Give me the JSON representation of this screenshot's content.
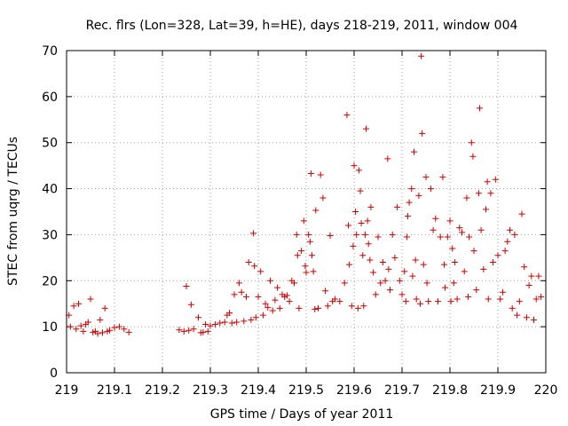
{
  "chart_data": {
    "type": "scatter",
    "title": "Rec. flrs (Lon=328, Lat=39, h=HE), days 218-219, 2011, window 004",
    "xlabel": "GPS time / Days of year 2011",
    "ylabel": "STEC from uqrg / TECUs",
    "xlim": [
      219,
      220
    ],
    "ylim": [
      0,
      70
    ],
    "xticks": [
      "219",
      "219.1",
      "219.2",
      "219.3",
      "219.4",
      "219.5",
      "219.6",
      "219.7",
      "219.8",
      "219.9",
      "220"
    ],
    "xtick_values": [
      219,
      219.1,
      219.2,
      219.3,
      219.4,
      219.5,
      219.6,
      219.7,
      219.8,
      219.9,
      220
    ],
    "yticks": [
      "0",
      "10",
      "20",
      "30",
      "40",
      "50",
      "60",
      "70"
    ],
    "ytick_values": [
      0,
      10,
      20,
      30,
      40,
      50,
      60,
      70
    ],
    "grid": true,
    "marker": "plus",
    "marker_color": "#cc0000",
    "series": [
      {
        "points": [
          [
            219.005,
            12.5
          ],
          [
            219.008,
            10.0
          ],
          [
            219.015,
            14.5
          ],
          [
            219.02,
            9.5
          ],
          [
            219.025,
            15.0
          ],
          [
            219.03,
            10.2
          ],
          [
            219.035,
            9.0
          ],
          [
            219.04,
            10.5
          ],
          [
            219.045,
            11.0
          ],
          [
            219.05,
            16.0
          ],
          [
            219.055,
            8.8
          ],
          [
            219.06,
            9.0
          ],
          [
            219.065,
            8.5
          ],
          [
            219.07,
            11.5
          ],
          [
            219.075,
            8.7
          ],
          [
            219.08,
            14.0
          ],
          [
            219.085,
            9.0
          ],
          [
            219.09,
            9.2
          ],
          [
            219.1,
            9.8
          ],
          [
            219.11,
            10.0
          ],
          [
            219.12,
            9.5
          ],
          [
            219.13,
            8.8
          ],
          [
            219.235,
            9.3
          ],
          [
            219.245,
            9.0
          ],
          [
            219.25,
            18.8
          ],
          [
            219.255,
            9.2
          ],
          [
            219.26,
            14.8
          ],
          [
            219.265,
            9.5
          ],
          [
            219.275,
            12.0
          ],
          [
            219.28,
            8.7
          ],
          [
            219.285,
            8.8
          ],
          [
            219.29,
            10.5
          ],
          [
            219.295,
            9.0
          ],
          [
            219.3,
            10.2
          ],
          [
            219.31,
            10.5
          ],
          [
            219.32,
            10.8
          ],
          [
            219.33,
            11.0
          ],
          [
            219.335,
            12.5
          ],
          [
            219.34,
            13.0
          ],
          [
            219.345,
            10.8
          ],
          [
            219.35,
            17.0
          ],
          [
            219.355,
            11.0
          ],
          [
            219.36,
            19.5
          ],
          [
            219.365,
            17.5
          ],
          [
            219.37,
            11.2
          ],
          [
            219.375,
            16.5
          ],
          [
            219.38,
            24.0
          ],
          [
            219.385,
            11.5
          ],
          [
            219.39,
            30.3
          ],
          [
            219.392,
            23.2
          ],
          [
            219.395,
            12.0
          ],
          [
            219.4,
            16.5
          ],
          [
            219.405,
            22.0
          ],
          [
            219.41,
            12.5
          ],
          [
            219.415,
            15.0
          ],
          [
            219.42,
            14.2
          ],
          [
            219.425,
            20.0
          ],
          [
            219.43,
            13.5
          ],
          [
            219.435,
            15.8
          ],
          [
            219.44,
            18.5
          ],
          [
            219.445,
            14.0
          ],
          [
            219.45,
            17.0
          ],
          [
            219.455,
            16.5
          ],
          [
            219.46,
            16.8
          ],
          [
            219.465,
            15.5
          ],
          [
            219.47,
            20.0
          ],
          [
            219.475,
            19.5
          ],
          [
            219.48,
            30.0
          ],
          [
            219.482,
            25.5
          ],
          [
            219.485,
            14.0
          ],
          [
            219.49,
            26.5
          ],
          [
            219.495,
            33.0
          ],
          [
            219.498,
            23.2
          ],
          [
            219.5,
            21.8
          ],
          [
            219.505,
            30.0
          ],
          [
            219.508,
            28.5
          ],
          [
            219.51,
            43.3
          ],
          [
            219.512,
            25.5
          ],
          [
            219.515,
            22.0
          ],
          [
            219.518,
            13.8
          ],
          [
            219.52,
            35.3
          ],
          [
            219.525,
            14.0
          ],
          [
            219.53,
            43.0
          ],
          [
            219.535,
            38.0
          ],
          [
            219.54,
            17.8
          ],
          [
            219.545,
            14.5
          ],
          [
            219.55,
            29.8
          ],
          [
            219.555,
            15.5
          ],
          [
            219.56,
            16.0
          ],
          [
            219.57,
            15.5
          ],
          [
            219.58,
            19.5
          ],
          [
            219.585,
            56.0
          ],
          [
            219.588,
            32.0
          ],
          [
            219.59,
            23.5
          ],
          [
            219.595,
            14.5
          ],
          [
            219.598,
            27.5
          ],
          [
            219.6,
            45.0
          ],
          [
            219.603,
            35.0
          ],
          [
            219.605,
            30.0
          ],
          [
            219.608,
            14.0
          ],
          [
            219.61,
            44.0
          ],
          [
            219.613,
            39.5
          ],
          [
            219.615,
            32.5
          ],
          [
            219.618,
            25.5
          ],
          [
            219.62,
            14.5
          ],
          [
            219.623,
            30.0
          ],
          [
            219.625,
            53.0
          ],
          [
            219.628,
            33.0
          ],
          [
            219.63,
            28.0
          ],
          [
            219.633,
            24.5
          ],
          [
            219.635,
            36.0
          ],
          [
            219.64,
            21.8
          ],
          [
            219.645,
            17.0
          ],
          [
            219.65,
            29.5
          ],
          [
            219.655,
            19.5
          ],
          [
            219.66,
            24.0
          ],
          [
            219.665,
            20.0
          ],
          [
            219.67,
            46.5
          ],
          [
            219.672,
            22.5
          ],
          [
            219.675,
            18.0
          ],
          [
            219.68,
            30.0
          ],
          [
            219.685,
            25.0
          ],
          [
            219.69,
            36.0
          ],
          [
            219.695,
            20.0
          ],
          [
            219.7,
            17.0
          ],
          [
            219.705,
            22.0
          ],
          [
            219.708,
            15.5
          ],
          [
            219.71,
            29.5
          ],
          [
            219.712,
            34.0
          ],
          [
            219.715,
            37.0
          ],
          [
            219.72,
            40.0
          ],
          [
            219.722,
            21.0
          ],
          [
            219.725,
            48.0
          ],
          [
            219.728,
            24.5
          ],
          [
            219.73,
            16.0
          ],
          [
            219.735,
            38.5
          ],
          [
            219.738,
            15.0
          ],
          [
            219.74,
            68.8
          ],
          [
            219.742,
            52.0
          ],
          [
            219.745,
            23.5
          ],
          [
            219.75,
            42.5
          ],
          [
            219.752,
            19.5
          ],
          [
            219.755,
            15.5
          ],
          [
            219.76,
            40.0
          ],
          [
            219.765,
            31.0
          ],
          [
            219.77,
            33.5
          ],
          [
            219.775,
            15.5
          ],
          [
            219.78,
            29.5
          ],
          [
            219.785,
            42.5
          ],
          [
            219.788,
            23.5
          ],
          [
            219.79,
            18.5
          ],
          [
            219.795,
            29.5
          ],
          [
            219.8,
            33.0
          ],
          [
            219.802,
            15.5
          ],
          [
            219.805,
            27.0
          ],
          [
            219.808,
            19.5
          ],
          [
            219.81,
            24.0
          ],
          [
            219.815,
            16.0
          ],
          [
            219.82,
            31.5
          ],
          [
            219.825,
            30.5
          ],
          [
            219.83,
            22.0
          ],
          [
            219.835,
            38.0
          ],
          [
            219.838,
            16.5
          ],
          [
            219.84,
            29.5
          ],
          [
            219.845,
            50.0
          ],
          [
            219.848,
            47.0
          ],
          [
            219.85,
            26.5
          ],
          [
            219.855,
            18.0
          ],
          [
            219.86,
            39.0
          ],
          [
            219.862,
            57.5
          ],
          [
            219.865,
            31.0
          ],
          [
            219.87,
            22.5
          ],
          [
            219.875,
            35.5
          ],
          [
            219.878,
            41.5
          ],
          [
            219.88,
            16.0
          ],
          [
            219.885,
            39.0
          ],
          [
            219.89,
            24.0
          ],
          [
            219.895,
            42.0
          ],
          [
            219.9,
            25.5
          ],
          [
            219.905,
            16.0
          ],
          [
            219.91,
            17.5
          ],
          [
            219.915,
            26.5
          ],
          [
            219.92,
            28.5
          ],
          [
            219.925,
            31.0
          ],
          [
            219.93,
            14.0
          ],
          [
            219.935,
            30.0
          ],
          [
            219.94,
            12.5
          ],
          [
            219.945,
            15.5
          ],
          [
            219.95,
            34.5
          ],
          [
            219.955,
            23.0
          ],
          [
            219.96,
            12.0
          ],
          [
            219.965,
            19.0
          ],
          [
            219.97,
            21.0
          ],
          [
            219.975,
            11.5
          ],
          [
            219.98,
            16.0
          ],
          [
            219.985,
            21.0
          ],
          [
            219.99,
            16.5
          ]
        ]
      }
    ]
  }
}
